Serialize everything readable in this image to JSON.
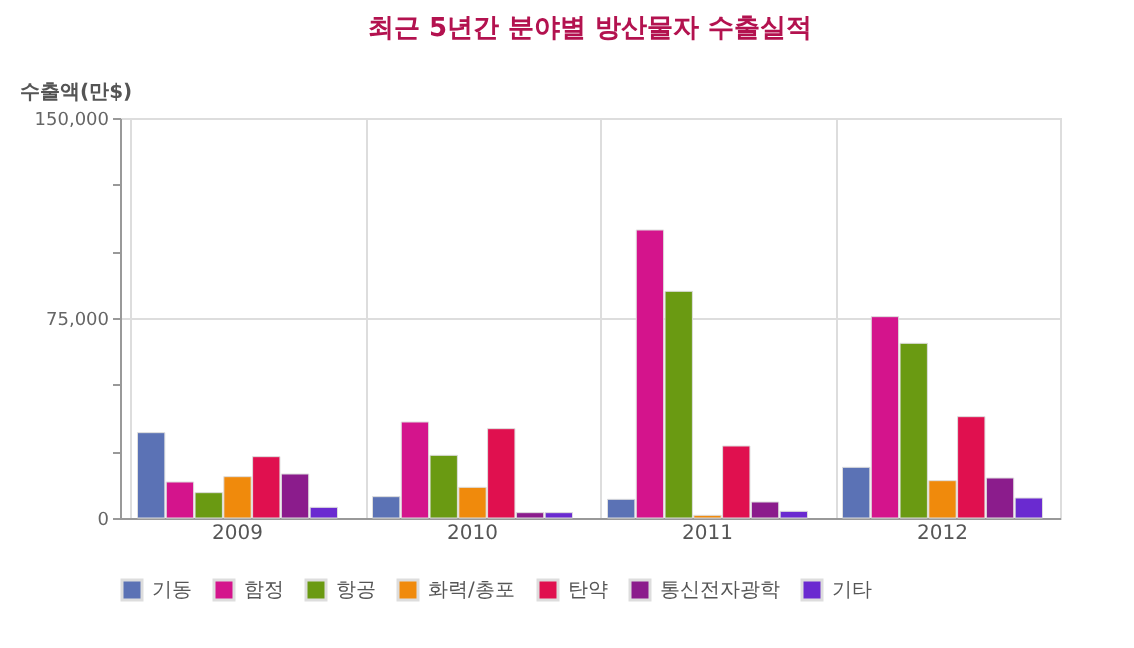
{
  "chart_data": {
    "type": "bar",
    "title": "최근 5년간 분야별 방산물자 수출실적",
    "ylabel": "수출액(만$)",
    "categories": [
      "2009",
      "2010",
      "2011",
      "2012"
    ],
    "series": [
      {
        "name": "기동",
        "color": "#5b72b5",
        "values": [
          32000,
          8000,
          7000,
          19000
        ]
      },
      {
        "name": "함정",
        "color": "#d4148c",
        "values": [
          13500,
          36000,
          108000,
          75500
        ]
      },
      {
        "name": "항공",
        "color": "#6a9a12",
        "values": [
          9500,
          23500,
          85000,
          65500
        ]
      },
      {
        "name": "화력/총포",
        "color": "#f08a0c",
        "values": [
          15500,
          11500,
          1000,
          14000
        ]
      },
      {
        "name": "탄약",
        "color": "#e0104f",
        "values": [
          23000,
          33500,
          27000,
          38000
        ]
      },
      {
        "name": "통신전자광학",
        "color": "#8b1c8c",
        "values": [
          16500,
          2000,
          6000,
          15000
        ]
      },
      {
        "name": "기타",
        "color": "#6a2ad0",
        "values": [
          4000,
          2000,
          2500,
          7500
        ]
      }
    ],
    "ylim": [
      0,
      150000
    ],
    "yticks": [
      0,
      {
        "value": 25000,
        "label": null
      },
      {
        "value": 50000,
        "label": null
      },
      {
        "value": 75000,
        "label": "75,000"
      },
      {
        "value": 100000,
        "label": null
      },
      {
        "value": 125000,
        "label": null
      },
      {
        "value": 150000,
        "label": "150,000"
      }
    ],
    "grid": true,
    "legend": "bottom"
  }
}
